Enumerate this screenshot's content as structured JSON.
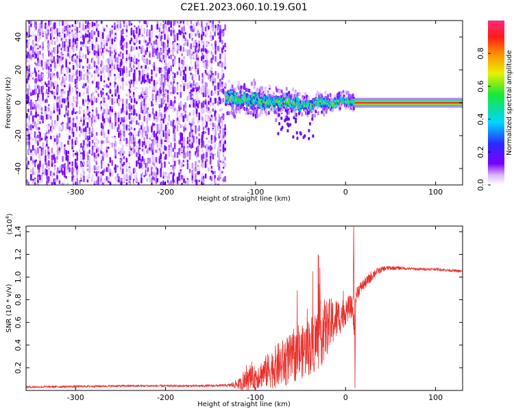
{
  "chart_data": [
    {
      "type": "heatmap",
      "title": "C2E1.2023.060.10.19.G01",
      "xlabel": "Height of straight line (km)",
      "ylabel": "Frequency (Hz)",
      "xlim": [
        -355,
        130
      ],
      "ylim": [
        -50,
        50
      ],
      "xticks": [
        -300,
        -200,
        -100,
        0,
        100
      ],
      "yticks": [
        -40,
        -20,
        0,
        20,
        40
      ],
      "colorbar": {
        "label": "Normalized spectral amplitude",
        "range": [
          0,
          1
        ],
        "ticks": [
          0.0,
          0.2,
          0.4,
          0.6,
          0.8
        ],
        "colormap": "rainbow: white→violet→blue→cyan→green→yellow→orange→red→magenta"
      },
      "regions": [
        {
          "desc": "broadband low-amplitude noise",
          "x": [
            -355,
            -133
          ],
          "y": [
            -50,
            50
          ],
          "amplitude": 0.1
        },
        {
          "desc": "scattered signal near 0 Hz",
          "x": [
            -133,
            10
          ],
          "y": [
            -10,
            8
          ],
          "amplitude": 0.45
        },
        {
          "desc": "narrow carrier line at 0 Hz",
          "x": [
            10,
            130
          ],
          "y": [
            -1.5,
            1.5
          ],
          "amplitude": 0.85
        }
      ],
      "centerline": [
        {
          "x": -130,
          "y": 3
        },
        {
          "x": -110,
          "y": 2
        },
        {
          "x": -95,
          "y": 1
        },
        {
          "x": -80,
          "y": 0
        },
        {
          "x": -65,
          "y": 1
        },
        {
          "x": -50,
          "y": -1
        },
        {
          "x": -40,
          "y": -2
        },
        {
          "x": -30,
          "y": 1
        },
        {
          "x": -15,
          "y": -1
        },
        {
          "x": -5,
          "y": 2
        },
        {
          "x": 0,
          "y": 1
        },
        {
          "x": 10,
          "y": 0
        },
        {
          "x": 130,
          "y": 0
        }
      ]
    },
    {
      "type": "line",
      "xlabel": "Height of straight line (km)",
      "ylabel": "SNR (10 * v/v)",
      "multiplier": "(x10",
      "multiplier_exp": "4",
      "multiplier_close": ")",
      "xlim": [
        -355,
        130
      ],
      "ylim": [
        0,
        1.45
      ],
      "xticks": [
        -300,
        -200,
        -100,
        0,
        100
      ],
      "yticks": [
        0.2,
        0.4,
        0.6,
        0.8,
        1.0,
        1.2,
        1.4
      ],
      "color": "#e8312d",
      "series": [
        {
          "x": [
            -355,
            -300,
            -250,
            -200,
            -160,
            -130,
            -115,
            -105,
            -95,
            -85,
            -75,
            -65,
            -55,
            -45,
            -35,
            -28,
            -20,
            -12,
            -5,
            0,
            5,
            8,
            10,
            12,
            14,
            18,
            25,
            30,
            35,
            45,
            60,
            80,
            100,
            115,
            130
          ],
          "values": [
            0.03,
            0.035,
            0.04,
            0.04,
            0.04,
            0.045,
            0.06,
            0.1,
            0.14,
            0.18,
            0.22,
            0.26,
            0.3,
            0.36,
            0.42,
            0.5,
            0.56,
            0.62,
            0.66,
            0.7,
            0.74,
            0.72,
            0.5,
            0.86,
            0.88,
            0.92,
            0.97,
            1.02,
            1.05,
            1.08,
            1.08,
            1.07,
            1.07,
            1.06,
            1.05
          ],
          "noise_amplitude": [
            0.01,
            0.01,
            0.01,
            0.01,
            0.01,
            0.012,
            0.06,
            0.1,
            0.12,
            0.16,
            0.2,
            0.22,
            0.22,
            0.24,
            0.28,
            0.3,
            0.25,
            0.2,
            0.15,
            0.12,
            0.1,
            0.1,
            0.1,
            0.08,
            0.06,
            0.05,
            0.05,
            0.05,
            0.03,
            0.02,
            0.015,
            0.012,
            0.012,
            0.012,
            0.012
          ]
        }
      ],
      "annotations": [
        {
          "x": 9,
          "y": 1.45,
          "desc": "spike"
        },
        {
          "x": 10.5,
          "y": 0.02,
          "desc": "dip"
        }
      ]
    }
  ]
}
